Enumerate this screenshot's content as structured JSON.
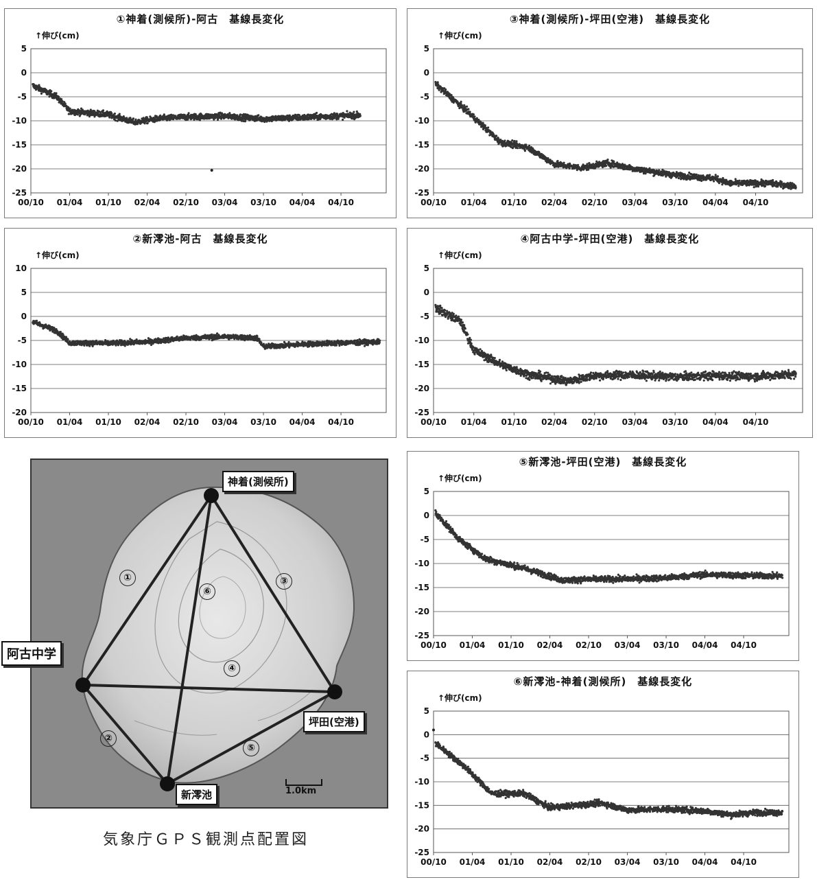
{
  "map": {
    "stations": {
      "kozaki": "神着(測候所)",
      "ako": "阿古中学",
      "tsubota": "坪田(空港)",
      "shinmio": "新澪池"
    },
    "baseline_labels": [
      "①",
      "②",
      "③",
      "④",
      "⑤",
      "⑥"
    ],
    "scale_label": "1.0km",
    "caption": "気象庁ＧＰＳ観測点配置図"
  },
  "chart_data": [
    {
      "type": "scatter",
      "title": "①神着(測候所)-阿古　基線長変化",
      "ylabel": "↑伸び(cm)",
      "ylim": [
        -25,
        5
      ],
      "yticks": [
        5,
        0,
        -5,
        -10,
        -15,
        -20,
        -25
      ],
      "xlim": [
        "2000-10",
        "2005-05"
      ],
      "xticks": [
        "00/10",
        "01/04",
        "01/10",
        "02/04",
        "02/10",
        "03/04",
        "03/10",
        "04/04",
        "04/10"
      ],
      "grid": true,
      "legend": "none",
      "end": "2005-01",
      "trend": [
        [
          0,
          -2.5
        ],
        [
          4,
          -5
        ],
        [
          6,
          -8
        ],
        [
          12,
          -8.7
        ],
        [
          16,
          -10.3
        ],
        [
          20,
          -9.5
        ],
        [
          24,
          -9.2
        ],
        [
          30,
          -9.0
        ],
        [
          36,
          -9.6
        ],
        [
          42,
          -9.3
        ],
        [
          51,
          -8.8
        ]
      ],
      "outliers": [
        [
          28,
          -20.3
        ]
      ],
      "noise": 0.6
    },
    {
      "type": "scatter",
      "title": "②新澪池-阿古　基線長変化",
      "ylabel": "↑伸び(cm)",
      "ylim": [
        -20,
        10
      ],
      "yticks": [
        10,
        5,
        0,
        -5,
        -10,
        -15,
        -20
      ],
      "xlim": [
        "2000-10",
        "2005-05"
      ],
      "xticks": [
        "00/10",
        "01/04",
        "01/10",
        "02/04",
        "02/10",
        "03/04",
        "03/10",
        "04/04",
        "04/10"
      ],
      "grid": true,
      "legend": "none",
      "end": "2005-04",
      "trend": [
        [
          0,
          -1
        ],
        [
          4,
          -3
        ],
        [
          6,
          -5.5
        ],
        [
          12,
          -5.6
        ],
        [
          18,
          -5.3
        ],
        [
          24,
          -4.5
        ],
        [
          30,
          -4.2
        ],
        [
          35,
          -4.5
        ],
        [
          36,
          -6.3
        ],
        [
          42,
          -5.8
        ],
        [
          48,
          -5.5
        ],
        [
          54,
          -5.3
        ]
      ],
      "outliers": [],
      "noise": 0.5
    },
    {
      "type": "scatter",
      "title": "③神着(測候所)-坪田(空港)　基線長変化",
      "ylabel": "↑伸び(cm)",
      "ylim": [
        -25,
        5
      ],
      "yticks": [
        5,
        0,
        -5,
        -10,
        -15,
        -20,
        -25
      ],
      "xlim": [
        "2000-10",
        "2005-05"
      ],
      "xticks": [
        "00/10",
        "01/04",
        "01/10",
        "02/04",
        "02/10",
        "03/04",
        "03/10",
        "04/04",
        "04/10"
      ],
      "grid": true,
      "legend": "none",
      "end": "2005-04",
      "trend": [
        [
          0,
          -2
        ],
        [
          5,
          -8
        ],
        [
          10,
          -14.5
        ],
        [
          14,
          -15.5
        ],
        [
          18,
          -19
        ],
        [
          22,
          -19.8
        ],
        [
          26,
          -18.8
        ],
        [
          30,
          -20
        ],
        [
          36,
          -21.3
        ],
        [
          42,
          -22
        ],
        [
          44,
          -23
        ],
        [
          50,
          -23
        ],
        [
          54,
          -23.6
        ]
      ],
      "outliers": [],
      "noise": 0.6
    },
    {
      "type": "scatter",
      "title": "④阿古中学-坪田(空港)　基線長変化",
      "ylabel": "↑伸び(cm)",
      "ylim": [
        -25,
        5
      ],
      "yticks": [
        5,
        0,
        -5,
        -10,
        -15,
        -20,
        -25
      ],
      "xlim": [
        "2000-10",
        "2005-05"
      ],
      "xticks": [
        "00/10",
        "01/04",
        "01/10",
        "02/04",
        "02/10",
        "03/04",
        "03/10",
        "04/04",
        "04/10"
      ],
      "grid": true,
      "legend": "none",
      "end": "2005-04",
      "trend": [
        [
          0,
          -3
        ],
        [
          4,
          -6
        ],
        [
          6,
          -12
        ],
        [
          10,
          -15
        ],
        [
          14,
          -17
        ],
        [
          20,
          -18.5
        ],
        [
          24,
          -17.3
        ],
        [
          30,
          -17.2
        ],
        [
          36,
          -17.6
        ],
        [
          42,
          -17.3
        ],
        [
          48,
          -17.5
        ],
        [
          54,
          -17
        ]
      ],
      "outliers": [],
      "noise": 0.8
    },
    {
      "type": "scatter",
      "title": "⑤新澪池-坪田(空港)　基線長変化",
      "ylabel": "↑伸び(cm)",
      "ylim": [
        -25,
        5
      ],
      "yticks": [
        5,
        0,
        -5,
        -10,
        -15,
        -20,
        -25
      ],
      "xlim": [
        "2000-10",
        "2005-05"
      ],
      "xticks": [
        "00/10",
        "01/04",
        "01/10",
        "02/04",
        "02/10",
        "03/04",
        "03/10",
        "04/04",
        "04/10"
      ],
      "grid": true,
      "legend": "none",
      "end": "2005-04",
      "trend": [
        [
          0,
          1
        ],
        [
          4,
          -5
        ],
        [
          8,
          -9
        ],
        [
          14,
          -11
        ],
        [
          20,
          -13.5
        ],
        [
          24,
          -13.3
        ],
        [
          30,
          -13.2
        ],
        [
          36,
          -13
        ],
        [
          42,
          -12.3
        ],
        [
          48,
          -12.5
        ],
        [
          54,
          -12.6
        ]
      ],
      "outliers": [],
      "noise": 0.6
    },
    {
      "type": "scatter",
      "title": "⑥新澪池-神着(測候所)　基線長変化",
      "ylabel": "↑伸び(cm)",
      "ylim": [
        -25,
        5
      ],
      "yticks": [
        5,
        0,
        -5,
        -10,
        -15,
        -20,
        -25
      ],
      "xlim": [
        "2000-10",
        "2005-05"
      ],
      "xticks": [
        "00/10",
        "01/04",
        "01/10",
        "02/04",
        "02/10",
        "03/04",
        "03/10",
        "04/04",
        "04/10"
      ],
      "grid": true,
      "legend": "none",
      "end": "2005-04",
      "trend": [
        [
          0,
          -1.5
        ],
        [
          5,
          -7
        ],
        [
          9,
          -12.5
        ],
        [
          14,
          -12.5
        ],
        [
          18,
          -15.5
        ],
        [
          22,
          -15
        ],
        [
          26,
          -14.5
        ],
        [
          30,
          -16
        ],
        [
          36,
          -15.8
        ],
        [
          42,
          -16.2
        ],
        [
          46,
          -17
        ],
        [
          50,
          -16.5
        ],
        [
          54,
          -16.5
        ]
      ],
      "outliers": [
        [
          0,
          1
        ]
      ],
      "noise": 0.6
    }
  ]
}
